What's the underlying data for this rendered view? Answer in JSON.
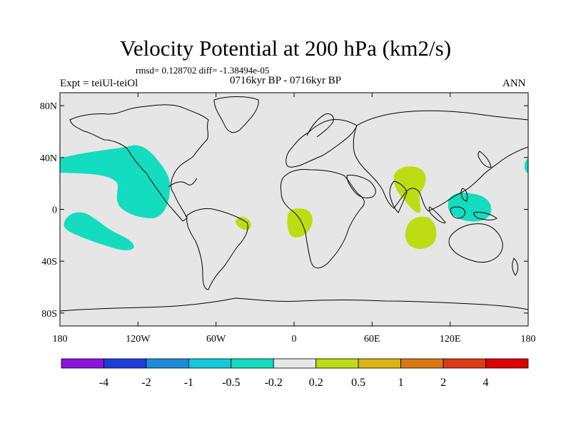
{
  "title": "Velocity Potential at 200 hPa (km2/s)",
  "stats": "rmsd= 0.128702  diff= -1.38494e-05",
  "experiment": "Expt = teiUl-teiOl",
  "period": "0716kyr BP - 0716kyr BP",
  "season": "ANN",
  "colors": {
    "land_sea_background": "#e6e6e6",
    "negative_anomaly": "#14dcbe",
    "positive_anomaly": "#bedc14",
    "coastline": "#000000"
  },
  "map": {
    "projection": "cylindrical equidistant",
    "lon_range": [
      -180,
      180
    ],
    "lat_range": [
      -90,
      90
    ],
    "lat_ticks": [
      {
        "lat": 80,
        "label": "80N"
      },
      {
        "lat": 40,
        "label": "40N"
      },
      {
        "lat": 0,
        "label": "0"
      },
      {
        "lat": -40,
        "label": "40S"
      },
      {
        "lat": -80,
        "label": "80S"
      }
    ],
    "lon_ticks": [
      {
        "lon": -180,
        "label": "180"
      },
      {
        "lon": -120,
        "label": "120W"
      },
      {
        "lon": -60,
        "label": "60W"
      },
      {
        "lon": 0,
        "label": "0"
      },
      {
        "lon": 60,
        "label": "60E"
      },
      {
        "lon": 120,
        "label": "120E"
      },
      {
        "lon": 180,
        "label": "180"
      }
    ]
  },
  "chart_data": {
    "type": "contour_map",
    "variable": "velocity potential anomaly at 200 hPa",
    "units": "km2/s",
    "regions": [
      {
        "name": "north-east pacific",
        "sign": "negative",
        "class": "-0.5 to -0.2",
        "center": [
          -135,
          20
        ]
      },
      {
        "name": "south pacific",
        "sign": "negative",
        "class": "-0.5 to -0.2",
        "center": [
          -160,
          -12
        ]
      },
      {
        "name": "western pacific / maritime continent",
        "sign": "negative",
        "class": "-0.5 to -0.2",
        "center": [
          135,
          5
        ]
      },
      {
        "name": "far east pacific edge",
        "sign": "negative",
        "class": "-0.5 to -0.2",
        "center": [
          179,
          32
        ]
      },
      {
        "name": "east brazil",
        "sign": "positive",
        "class": "0.2 to 0.5",
        "center": [
          -38,
          -8
        ]
      },
      {
        "name": "central africa",
        "sign": "positive",
        "class": "0.2 to 0.5",
        "center": [
          10,
          -8
        ]
      },
      {
        "name": "south asia / bay of bengal",
        "sign": "positive",
        "class": "0.2 to 0.5",
        "center": [
          88,
          22
        ]
      },
      {
        "name": "south-east indian ocean",
        "sign": "positive",
        "class": "0.2 to 0.5",
        "center": [
          97,
          -18
        ]
      }
    ],
    "colorbar": {
      "levels": [
        "-4",
        "-2",
        "-1",
        "-0.5",
        "-0.2",
        "0.2",
        "0.5",
        "1",
        "2",
        "4"
      ],
      "colors": [
        "#8c14dc",
        "#1e3cdc",
        "#1e8cdc",
        "#14c8dc",
        "#14dcbe",
        "#e6e6e6",
        "#bedc14",
        "#dcb414",
        "#dc7814",
        "#dc3c14",
        "#dc0000"
      ]
    }
  }
}
